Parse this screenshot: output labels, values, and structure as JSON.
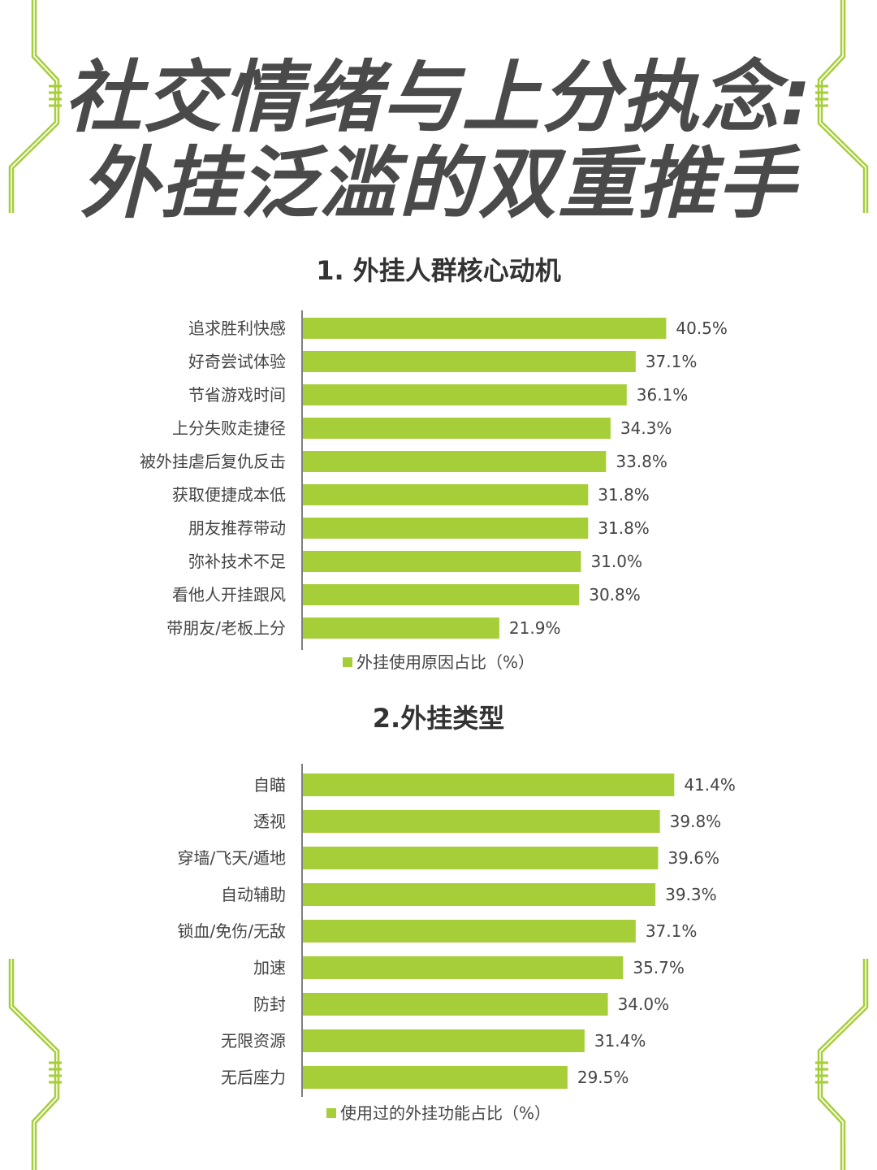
{
  "page": {
    "title_line1": "社交情绪与上分执念:",
    "title_line2": "外挂泛滥的双重推手",
    "accent_color": "#a6ce39",
    "text_color": "#444444"
  },
  "chart_data": [
    {
      "type": "bar",
      "orientation": "horizontal",
      "title": "1. 外挂人群核心动机",
      "categories": [
        "追求胜利快感",
        "好奇尝试体验",
        "节省游戏时间",
        "上分失败走捷径",
        "被外挂虐后复仇反击",
        "获取便捷成本低",
        "朋友推荐带动",
        "弥补技术不足",
        "看他人开挂跟风",
        "带朋友/老板上分"
      ],
      "series": [
        {
          "name": "外挂使用原因占比（%）",
          "values": [
            40.5,
            37.1,
            36.1,
            34.3,
            33.8,
            31.8,
            31.8,
            31.0,
            30.8,
            21.9
          ]
        }
      ],
      "value_labels": [
        "40.5%",
        "37.1%",
        "36.1%",
        "34.3%",
        "33.8%",
        "31.8%",
        "31.8%",
        "31.0%",
        "30.8%",
        "21.9%"
      ],
      "xlim": [
        0,
        43
      ],
      "legend_position": "bottom",
      "grid": false,
      "bar_color": "#a6ce39"
    },
    {
      "type": "bar",
      "orientation": "horizontal",
      "title": "2.外挂类型",
      "categories": [
        "自瞄",
        "透视",
        "穿墙/飞天/遁地",
        "自动辅助",
        "锁血/免伤/无敌",
        "加速",
        "防封",
        "无限资源",
        "无后座力"
      ],
      "series": [
        {
          "name": "使用过的外挂功能占比（%）",
          "values": [
            41.4,
            39.8,
            39.6,
            39.3,
            37.1,
            35.7,
            34.0,
            31.4,
            29.5
          ]
        }
      ],
      "value_labels": [
        "41.4%",
        "39.8%",
        "39.6%",
        "39.3%",
        "37.1%",
        "35.7%",
        "34.0%",
        "31.4%",
        "29.5%"
      ],
      "xlim": [
        0,
        43
      ],
      "legend_position": "bottom",
      "grid": false,
      "bar_color": "#a6ce39"
    }
  ]
}
